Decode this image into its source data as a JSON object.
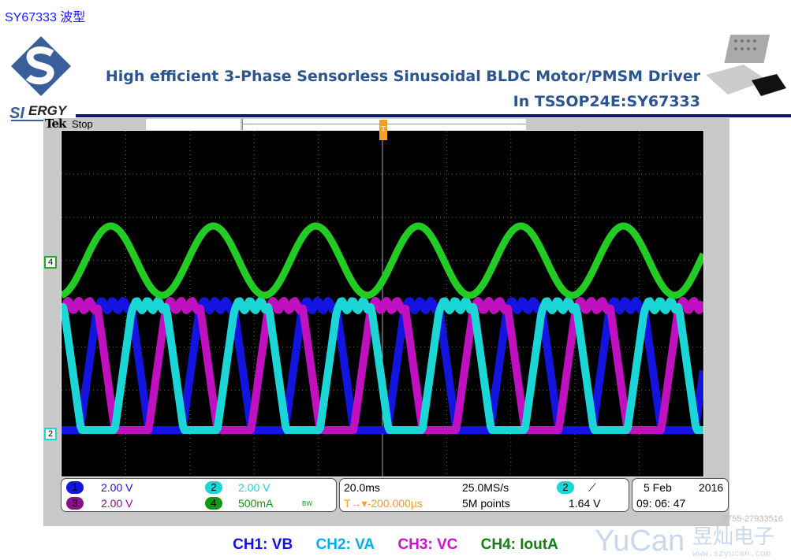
{
  "slide": {
    "tag": "SY67333 波型",
    "title_line1": "High efficient 3-Phase Sensorless Sinusoidal BLDC Motor/PMSM Driver",
    "title_line2": "In TSSOP24E:SY67333",
    "logo_text": "SILERGY",
    "brand_color": "#3a5e9a"
  },
  "scope": {
    "brand": "Tek",
    "status": "Stop",
    "trigger_marker": "T",
    "channels": [
      {
        "num": "1",
        "scale": "2.00 V",
        "color": "#1414e0"
      },
      {
        "num": "2",
        "scale": "2.00 V",
        "color": "#1ad6d6"
      },
      {
        "num": "3",
        "scale": "2.00 V",
        "color": "#c010c0"
      },
      {
        "num": "4",
        "scale": "500mA",
        "color": "#22cc22",
        "bw": "BW"
      }
    ],
    "ch_markers": [
      "4",
      "2"
    ],
    "timebase": "20.0ms",
    "sample_rate": "25.0MS/s",
    "trigger_delay": "T→▾-200.000µs",
    "record_length": "5M points",
    "trigger_source": "2",
    "trigger_slope": "⟋",
    "trigger_level": "1.64 V",
    "date": "5 Feb",
    "year": "2016",
    "time": "09: 06: 47"
  },
  "legend": [
    {
      "label": "CH1: VB",
      "color": "#1010ee"
    },
    {
      "label": "CH2: VA",
      "color": "#00b0f0"
    },
    {
      "label": "CH3: VC",
      "color": "#d010d0"
    },
    {
      "label": "CH4: IoutA",
      "color": "#108010"
    }
  ],
  "watermark": {
    "phone": "0755-27933516",
    "brand": "YuCan",
    "cn": "昱灿电子",
    "url": "www.szyucan.com"
  }
}
